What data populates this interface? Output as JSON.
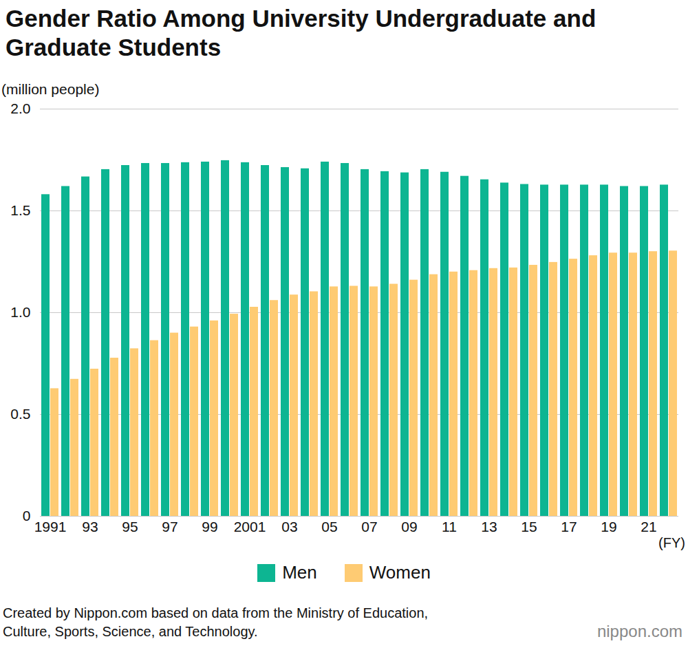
{
  "chart_data": {
    "type": "bar",
    "title": "Gender Ratio Among University Undergraduate and Graduate Students",
    "y_label": "(million people)",
    "x_label": "(FY)",
    "caption": "Created by Nippon.com based on data from the Ministry of Education, Culture, Sports, Science, and Technology.",
    "logo": "nippon.com",
    "categories": [
      "1991",
      null,
      "93",
      null,
      "95",
      null,
      "97",
      null,
      "99",
      null,
      "2001",
      null,
      "03",
      null,
      "05",
      null,
      "07",
      null,
      "09",
      null,
      "11",
      null,
      "13",
      null,
      "15",
      null,
      "17",
      null,
      "19",
      null,
      "21",
      null
    ],
    "series": [
      {
        "name": "Men",
        "color": "#0db592",
        "values": [
          1.58,
          1.62,
          1.667,
          1.703,
          1.723,
          1.733,
          1.733,
          1.737,
          1.74,
          1.747,
          1.737,
          1.723,
          1.713,
          1.707,
          1.74,
          1.733,
          1.703,
          1.693,
          1.687,
          1.703,
          1.69,
          1.67,
          1.653,
          1.637,
          1.63,
          1.627,
          1.627,
          1.627,
          1.627,
          1.62,
          1.62,
          1.627
        ]
      },
      {
        "name": "Women",
        "color": "#fecb73",
        "values": [
          0.627,
          0.673,
          0.723,
          0.777,
          0.823,
          0.863,
          0.9,
          0.93,
          0.96,
          0.993,
          1.027,
          1.06,
          1.087,
          1.103,
          1.127,
          1.13,
          1.127,
          1.14,
          1.16,
          1.187,
          1.2,
          1.207,
          1.217,
          1.22,
          1.233,
          1.247,
          1.263,
          1.28,
          1.293,
          1.293,
          1.3,
          1.303
        ]
      }
    ],
    "ylim": [
      0,
      2
    ],
    "yticks": [
      0,
      0.5,
      {
        "value": 1,
        "label": "1.0"
      },
      1.5,
      {
        "value": 2,
        "label": "2.0"
      }
    ],
    "grid": true,
    "legend": "bottom"
  }
}
